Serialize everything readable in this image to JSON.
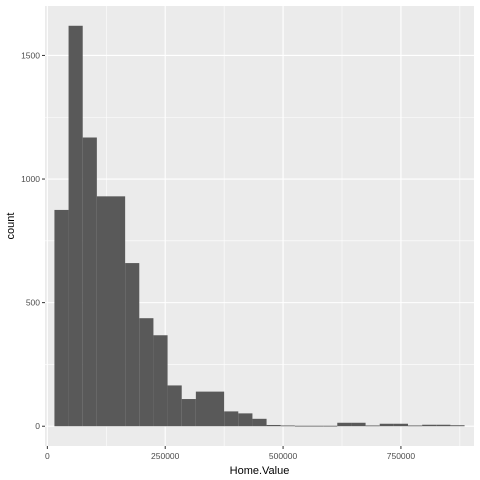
{
  "chart_data": {
    "type": "bar",
    "subtype": "histogram",
    "xlabel": "Home.Value",
    "ylabel": "count",
    "xlim": [
      -5000,
      905000
    ],
    "ylim": [
      -80,
      1700
    ],
    "x_ticks": [
      0,
      250000,
      500000,
      750000
    ],
    "x_tick_labels": [
      "0",
      "250000",
      "500000",
      "750000"
    ],
    "y_ticks": [
      0,
      500,
      1000,
      1500
    ],
    "y_tick_labels": [
      "0",
      "500",
      "1000",
      "1500"
    ],
    "grid": true,
    "bin_width": 30000,
    "bins": [
      {
        "x0": 15000,
        "x1": 45000,
        "count": 875
      },
      {
        "x0": 45000,
        "x1": 75000,
        "count": 1620
      },
      {
        "x0": 75000,
        "x1": 105000,
        "count": 1168
      },
      {
        "x0": 105000,
        "x1": 135000,
        "count": 930
      },
      {
        "x0": 135000,
        "x1": 165000,
        "count": 930
      },
      {
        "x0": 165000,
        "x1": 195000,
        "count": 660
      },
      {
        "x0": 195000,
        "x1": 225000,
        "count": 437
      },
      {
        "x0": 225000,
        "x1": 255000,
        "count": 368
      },
      {
        "x0": 255000,
        "x1": 285000,
        "count": 165
      },
      {
        "x0": 285000,
        "x1": 315000,
        "count": 110
      },
      {
        "x0": 315000,
        "x1": 345000,
        "count": 140
      },
      {
        "x0": 345000,
        "x1": 375000,
        "count": 140
      },
      {
        "x0": 375000,
        "x1": 405000,
        "count": 60
      },
      {
        "x0": 405000,
        "x1": 435000,
        "count": 52
      },
      {
        "x0": 435000,
        "x1": 465000,
        "count": 30
      },
      {
        "x0": 465000,
        "x1": 495000,
        "count": 5
      },
      {
        "x0": 495000,
        "x1": 525000,
        "count": 3
      },
      {
        "x0": 525000,
        "x1": 555000,
        "count": 2
      },
      {
        "x0": 555000,
        "x1": 585000,
        "count": 2
      },
      {
        "x0": 585000,
        "x1": 615000,
        "count": 2
      },
      {
        "x0": 615000,
        "x1": 645000,
        "count": 14
      },
      {
        "x0": 645000,
        "x1": 675000,
        "count": 14
      },
      {
        "x0": 675000,
        "x1": 705000,
        "count": 3
      },
      {
        "x0": 705000,
        "x1": 735000,
        "count": 10
      },
      {
        "x0": 735000,
        "x1": 765000,
        "count": 10
      },
      {
        "x0": 765000,
        "x1": 795000,
        "count": 3
      },
      {
        "x0": 795000,
        "x1": 825000,
        "count": 6
      },
      {
        "x0": 825000,
        "x1": 855000,
        "count": 6
      },
      {
        "x0": 855000,
        "x1": 885000,
        "count": 4
      }
    ],
    "colors": {
      "panel_background": "#ebebeb",
      "grid_major": "#ffffff",
      "bar_fill": "#595959",
      "tick_text": "#4d4d4d",
      "tick_mark": "#333333"
    }
  }
}
